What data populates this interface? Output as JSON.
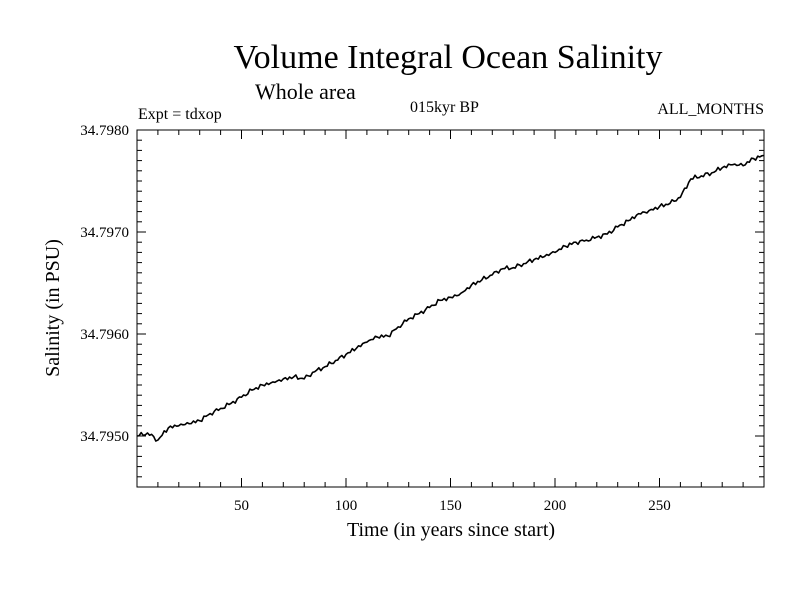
{
  "header": {
    "title": "Volume Integral Ocean Salinity",
    "subtitle": "Whole area",
    "experiment": "Expt = tdxop",
    "period": "015kyr BP",
    "months": "ALL_MONTHS"
  },
  "chart_data": {
    "type": "line",
    "title": "Volume Integral Ocean Salinity",
    "subtitle": "Whole area",
    "xlabel": "Time (in years since start)",
    "ylabel": "Salinity (in PSU)",
    "xlim": [
      0,
      300
    ],
    "ylim": [
      34.7945,
      34.798
    ],
    "xticks": [
      50,
      100,
      150,
      200,
      250
    ],
    "yticks": [
      34.795,
      34.796,
      34.797,
      34.798
    ],
    "ytick_labels": [
      "34.7950",
      "34.7960",
      "34.7970",
      "34.7980"
    ],
    "grid": false,
    "legend": "none",
    "line_color": "#000000",
    "series": [
      {
        "x": [
          0,
          5,
          10,
          15,
          20,
          25,
          30,
          35,
          40,
          45,
          50,
          55,
          60,
          65,
          70,
          75,
          80,
          85,
          90,
          95,
          100,
          105,
          110,
          115,
          120,
          125,
          130,
          135,
          140,
          145,
          150,
          155,
          160,
          165,
          170,
          175,
          180,
          185,
          190,
          195,
          200,
          205,
          210,
          215,
          220,
          225,
          230,
          235,
          240,
          245,
          250,
          255,
          260,
          265,
          270,
          275,
          280,
          285,
          290,
          295,
          300
        ],
        "values": [
          34.795,
          34.79503,
          34.79496,
          34.79508,
          34.7951,
          34.79512,
          34.79515,
          34.79522,
          34.79527,
          34.79532,
          34.79538,
          34.79545,
          34.7955,
          34.79553,
          34.79556,
          34.79558,
          34.79556,
          34.79563,
          34.79568,
          34.79574,
          34.7958,
          34.79586,
          34.79592,
          34.79597,
          34.79598,
          34.79607,
          34.79615,
          34.7962,
          34.79626,
          34.79633,
          34.79636,
          34.7964,
          34.79648,
          34.79653,
          34.79658,
          34.79664,
          34.79665,
          34.79669,
          34.79673,
          34.79676,
          34.7968,
          34.79686,
          34.7969,
          34.79692,
          34.79695,
          34.79698,
          34.79705,
          34.79711,
          34.79718,
          34.79721,
          34.79725,
          34.79728,
          34.79734,
          34.79752,
          34.79755,
          34.79758,
          34.79763,
          34.79766,
          34.79765,
          34.79772,
          34.79775
        ]
      }
    ]
  }
}
